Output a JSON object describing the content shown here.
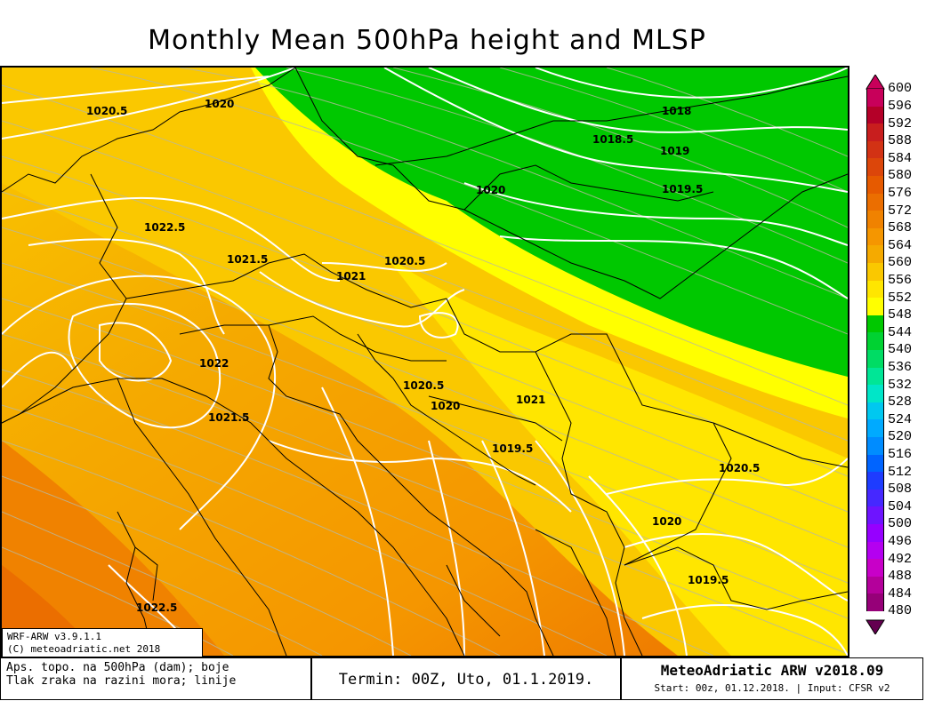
{
  "title": "Monthly Mean 500hPa height and MLSP",
  "model_box": {
    "line1": "WRF-ARW v3.9.1.1",
    "line2": "(C) meteoadriatic.net 2018"
  },
  "footer": {
    "desc_line1": "Aps. topo. na 500hPa (dam); boje",
    "desc_line2": "Tlak zraka na razini mora; linije",
    "termin": "Termin: 00Z, Uto, 01.1.2019.",
    "brand": "MeteoAdriatic ARW v2018.09",
    "start_info": "Start: 00z, 01.12.2018. | Input: CFSR v2"
  },
  "legend": {
    "levels": [
      "600",
      "596",
      "592",
      "588",
      "584",
      "580",
      "576",
      "572",
      "568",
      "564",
      "560",
      "556",
      "552",
      "548",
      "544",
      "540",
      "536",
      "532",
      "528",
      "524",
      "520",
      "516",
      "512",
      "508",
      "504",
      "500",
      "496",
      "492",
      "488",
      "484",
      "480"
    ],
    "colors": [
      "#c8005a",
      "#b40028",
      "#c81e1e",
      "#d23214",
      "#dc460a",
      "#e65a00",
      "#eb6e00",
      "#f08200",
      "#f59600",
      "#f5aa00",
      "#fac800",
      "#ffe600",
      "#ffff00",
      "#00c800",
      "#00d232",
      "#00dc64",
      "#00e696",
      "#00e6c8",
      "#00c8f0",
      "#00aaff",
      "#008cff",
      "#0064ff",
      "#1e3cff",
      "#4628ff",
      "#6e14ff",
      "#9600ff",
      "#b400f0",
      "#c800c8",
      "#b4009b",
      "#960078",
      "#640050"
    ]
  },
  "isobar_labels": [
    {
      "text": "1020.5",
      "id": "a"
    },
    {
      "text": "1020",
      "id": "b"
    },
    {
      "text": "1018",
      "id": "c"
    },
    {
      "text": "1018.5",
      "id": "d"
    },
    {
      "text": "1019",
      "id": "e"
    },
    {
      "text": "1019.5",
      "id": "f"
    },
    {
      "text": "1020",
      "id": "g"
    },
    {
      "text": "1022.5",
      "id": "h"
    },
    {
      "text": "1021.5",
      "id": "i"
    },
    {
      "text": "1020.5",
      "id": "j"
    },
    {
      "text": "1021",
      "id": "k"
    },
    {
      "text": "1022",
      "id": "l"
    },
    {
      "text": "1020.5",
      "id": "m"
    },
    {
      "text": "1020",
      "id": "n"
    },
    {
      "text": "1021",
      "id": "o"
    },
    {
      "text": "1021.5",
      "id": "p"
    },
    {
      "text": "1019.5",
      "id": "q"
    },
    {
      "text": "1020.5",
      "id": "r"
    },
    {
      "text": "1020",
      "id": "s"
    },
    {
      "text": "1019.5",
      "id": "t"
    },
    {
      "text": "1022.5",
      "id": "u"
    }
  ]
}
